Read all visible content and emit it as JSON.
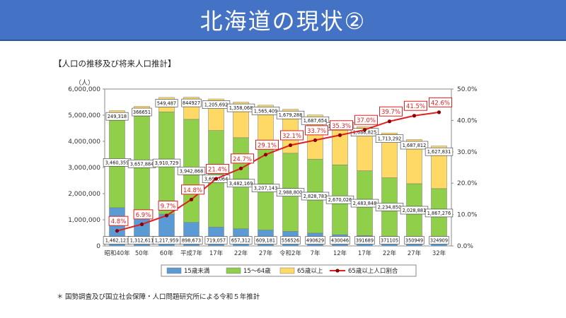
{
  "banner": {
    "title": "北海道の現状②"
  },
  "footnote": "国勢調査及び国立社会保障・人口問題研究所による令和５年推計",
  "footnote_mark": "＊",
  "colors": {
    "banner": "#4472c4",
    "u15": "#5b9bd5",
    "mid": "#8fcf4a",
    "old": "#ffd966",
    "rate": "#e02020"
  },
  "chart_data": {
    "type": "bar",
    "stacked": true,
    "title": "【人口の推移及び将来人口推計】",
    "ylabel": "（人）",
    "ylim": [
      0,
      6000000
    ],
    "y2lim": [
      0,
      50
    ],
    "y_ticks": [
      "0",
      "1,000,000",
      "2,000,000",
      "3,000,000",
      "4,000,000",
      "5,000,000",
      "6,000,000"
    ],
    "y2_ticks": [
      "0.0%",
      "10.0%",
      "20.0%",
      "30.0%",
      "40.0%",
      "50.0%"
    ],
    "categories": [
      "昭和40年",
      "50年",
      "60年",
      "平成7年",
      "17年",
      "22年",
      "27年",
      "令和2年",
      "7年",
      "12年",
      "17年",
      "22年",
      "27年",
      "32年"
    ],
    "series": [
      {
        "name": "15歳未満",
        "values": [
          1462123,
          1312611,
          1217959,
          898673,
          719057,
          657312,
          609181,
          556526,
          490629,
          430046,
          391689,
          371105,
          350949,
          324909
        ],
        "labels": [
          "1,462,123",
          "1,312,611",
          "1,217,959",
          "898,673",
          "719,057",
          "657,312",
          "609,181",
          "556526",
          "490629",
          "430046",
          "391689",
          "371105",
          "350949",
          "324909"
        ]
      },
      {
        "name": "15〜64歳",
        "values": [
          3460359,
          3657884,
          3910729,
          3942868,
          3696064,
          3482169,
          3207143,
          2988800,
          2828783,
          2670026,
          2483848,
          2234850,
          2028881,
          1867276
        ],
        "labels": [
          "3,460,359",
          "3,657,884",
          "3,910,729",
          "3,942,868",
          "3,696,064",
          "3,482,169",
          "3,207,143",
          "2,988,800",
          "2,828,783",
          "2,670,026",
          "2,483,848",
          "2,234,850",
          "2,028,881",
          "1,867,276"
        ]
      },
      {
        "name": "65歳以上",
        "values": [
          249318,
          366651,
          549487,
          844927,
          1205692,
          1358068,
          1565409,
          1679288,
          1687654,
          1691484,
          1686825,
          1713292,
          1687812,
          1627831
        ],
        "labels": [
          "249,318",
          "366651",
          "549,487",
          "844927",
          "1,205,692",
          "1,358,068",
          "1,565,409",
          "1,679,288",
          "1,687,654",
          "1,691,484",
          "1,686,825",
          "1,713,292",
          "1,687,812",
          "1,627,831"
        ]
      }
    ],
    "rate_series": {
      "name": "65歳以上人口割合",
      "values": [
        4.8,
        6.9,
        9.7,
        14.8,
        21.4,
        24.7,
        29.1,
        32.1,
        33.7,
        35.3,
        37.0,
        39.7,
        41.5,
        42.6
      ],
      "labels": [
        "4.8%",
        "6.9%",
        "9.7%",
        "14.8%",
        "21.4%",
        "24.7%",
        "29.1%",
        "32.1%",
        "33.7%",
        "35.3%",
        "37.0%",
        "39.7%",
        "41.5%",
        "42.6%"
      ]
    }
  }
}
